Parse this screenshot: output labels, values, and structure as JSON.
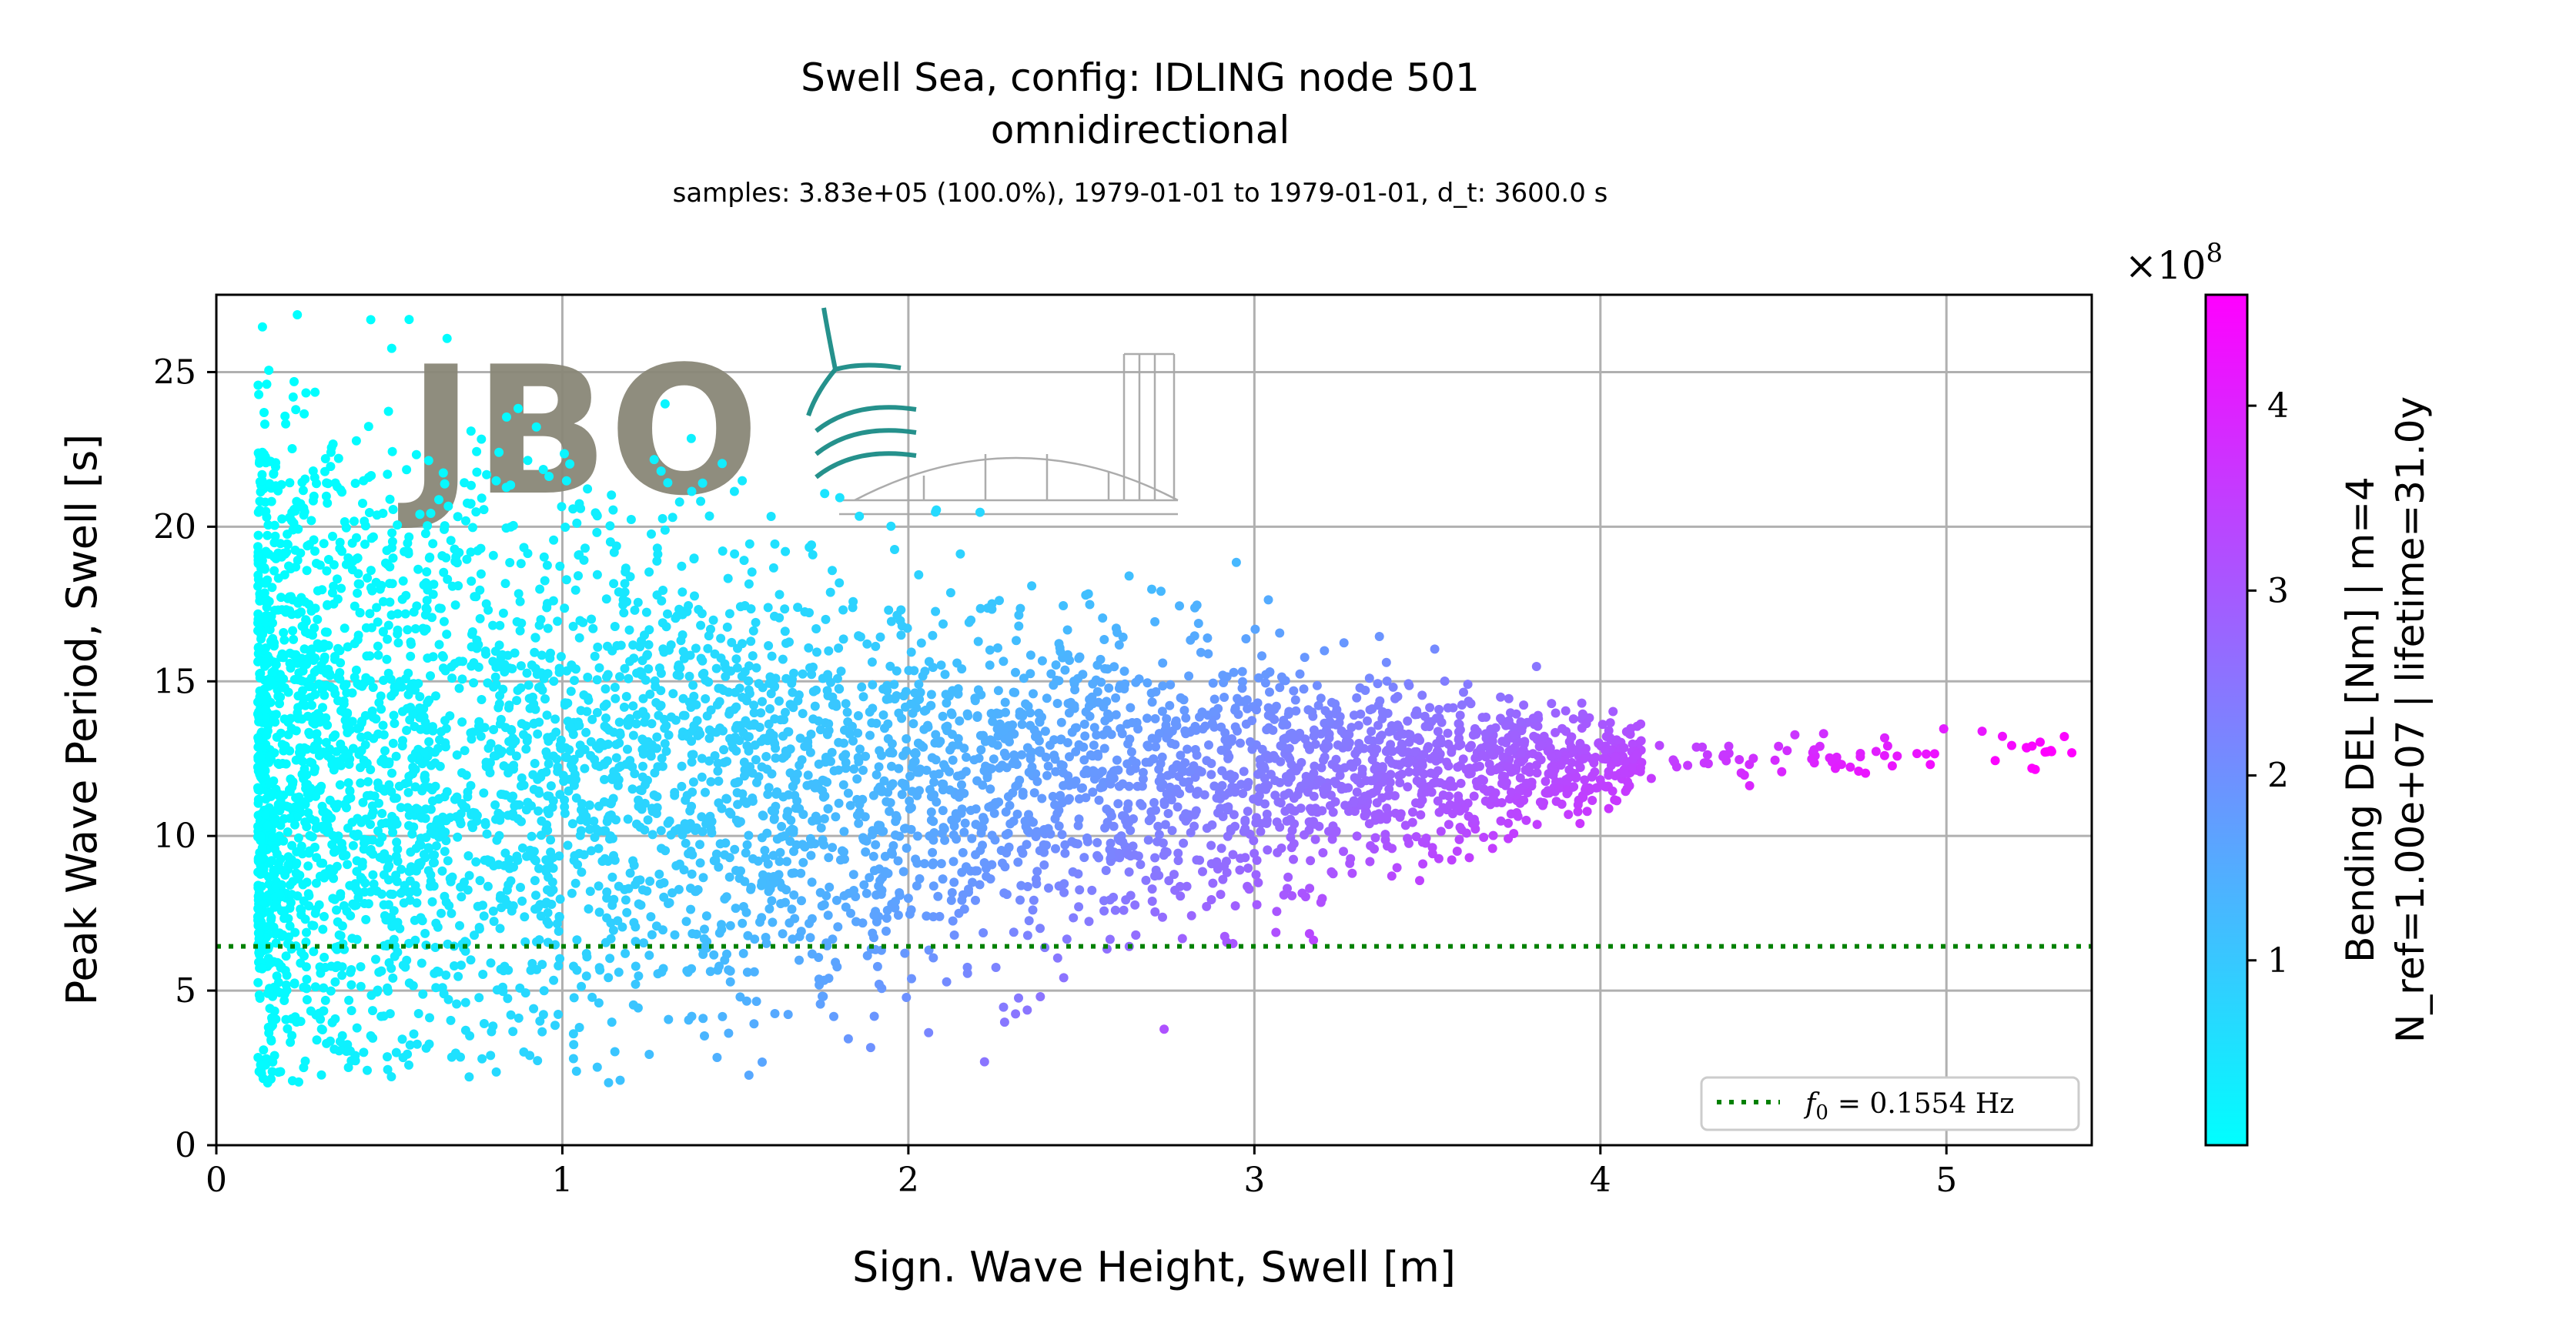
{
  "chart_data": {
    "type": "scatter",
    "title": "Swell Sea, config: IDLING node 501",
    "subtitle": "omnidirectional",
    "info": "samples: 3.83e+05 (100.0%), 1979-01-01 to 1979-01-01, d_t: 3600.0 s",
    "xlabel": "Sign. Wave Height, Swell [m]",
    "ylabel": "Peak Wave Period, Swell [s]",
    "xlim": [
      0,
      5.42
    ],
    "ylim": [
      0,
      27.5
    ],
    "xticks": [
      0,
      1,
      2,
      3,
      4,
      5
    ],
    "yticks": [
      0,
      5,
      10,
      15,
      20,
      25
    ],
    "grid": true,
    "hline": {
      "y": 6.43,
      "label": "f_0 = 0.1554 Hz",
      "f0_symbol": "f",
      "f0_sub": "0",
      "f0_value": "= 0.1554 Hz",
      "color": "#008000",
      "style": "dotted"
    },
    "legend_position": "lower-right",
    "colorbar": {
      "label_line1": "Bending DEL [Nm] | m=4",
      "label_line2": "N_ref=1.00e+07 | lifetime=31.0y",
      "range": [
        0,
        4.6
      ],
      "ticks": [
        1,
        2,
        3,
        4
      ],
      "multiplier": "×10",
      "multiplier_exponent": "8",
      "colormap": "cool",
      "color_low": "#00ffff",
      "color_high": "#ff00ff"
    },
    "point_cloud": [
      {
        "x": 0.12,
        "y": 2.9
      },
      {
        "x": 0.2,
        "y": 2.5
      },
      {
        "x": 0.35,
        "y": 2.0
      },
      {
        "x": 0.25,
        "y": 19.7
      },
      {
        "x": 0.35,
        "y": 23.0
      },
      {
        "x": 0.5,
        "y": 22.6
      },
      {
        "x": 0.75,
        "y": 22.8
      },
      {
        "x": 1.0,
        "y": 22.2
      },
      {
        "x": 1.5,
        "y": 21.0
      },
      {
        "x": 2.0,
        "y": 20.5
      },
      {
        "x": 2.5,
        "y": 18.7
      },
      {
        "x": 3.0,
        "y": 17.3
      },
      {
        "x": 3.5,
        "y": 15.5
      },
      {
        "x": 3.78,
        "y": 17.5
      },
      {
        "x": 4.0,
        "y": 14.5
      },
      {
        "x": 4.5,
        "y": 14.2
      },
      {
        "x": 5.05,
        "y": 15.1
      },
      {
        "x": 5.42,
        "y": 14.2
      },
      {
        "x": 5.3,
        "y": 12.5
      },
      {
        "x": 4.57,
        "y": 10.0
      },
      {
        "x": 4.0,
        "y": 10.5
      },
      {
        "x": 3.5,
        "y": 8.5
      },
      {
        "x": 3.0,
        "y": 7.5
      },
      {
        "x": 2.38,
        "y": 6.3
      },
      {
        "x": 2.0,
        "y": 6.2
      },
      {
        "x": 1.5,
        "y": 5.0
      },
      {
        "x": 1.0,
        "y": 4.5
      },
      {
        "x": 0.5,
        "y": 3.5
      }
    ],
    "logo": {
      "text": "JBO",
      "color": "#8a8778",
      "accent": "#1a8c86"
    }
  }
}
